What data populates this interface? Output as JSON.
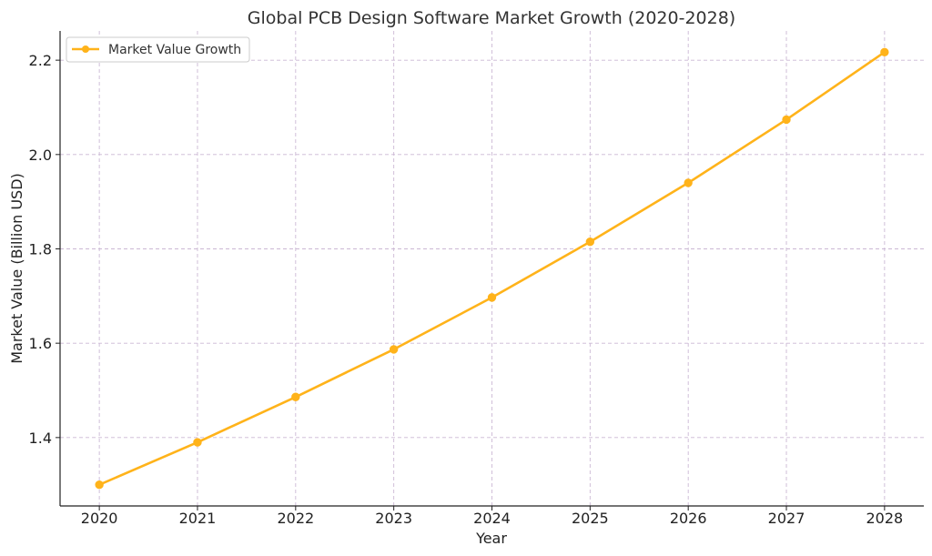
{
  "chart_data": {
    "type": "line",
    "title": "Global PCB Design Software Market Growth (2020-2028)",
    "xlabel": "Year",
    "ylabel": "Market Value (Billion USD)",
    "x": [
      2020,
      2021,
      2022,
      2023,
      2024,
      2025,
      2026,
      2027,
      2028
    ],
    "series": [
      {
        "name": "Market Value Growth",
        "color": "#FFB31A",
        "values": [
          1.3,
          1.39,
          1.486,
          1.587,
          1.697,
          1.815,
          1.94,
          2.074,
          2.217
        ]
      }
    ],
    "xlim": [
      2019.6,
      2028.4
    ],
    "ylim": [
      1.255,
      2.262
    ],
    "yticks": [
      1.4,
      1.6,
      1.8,
      2.0,
      2.2
    ],
    "ytick_labels": [
      "1.4",
      "1.6",
      "1.8",
      "2.0",
      "2.2"
    ],
    "xtick_labels": [
      "2020",
      "2021",
      "2022",
      "2023",
      "2024",
      "2025",
      "2026",
      "2027",
      "2028"
    ],
    "grid": true,
    "legend_position": "top-left"
  }
}
